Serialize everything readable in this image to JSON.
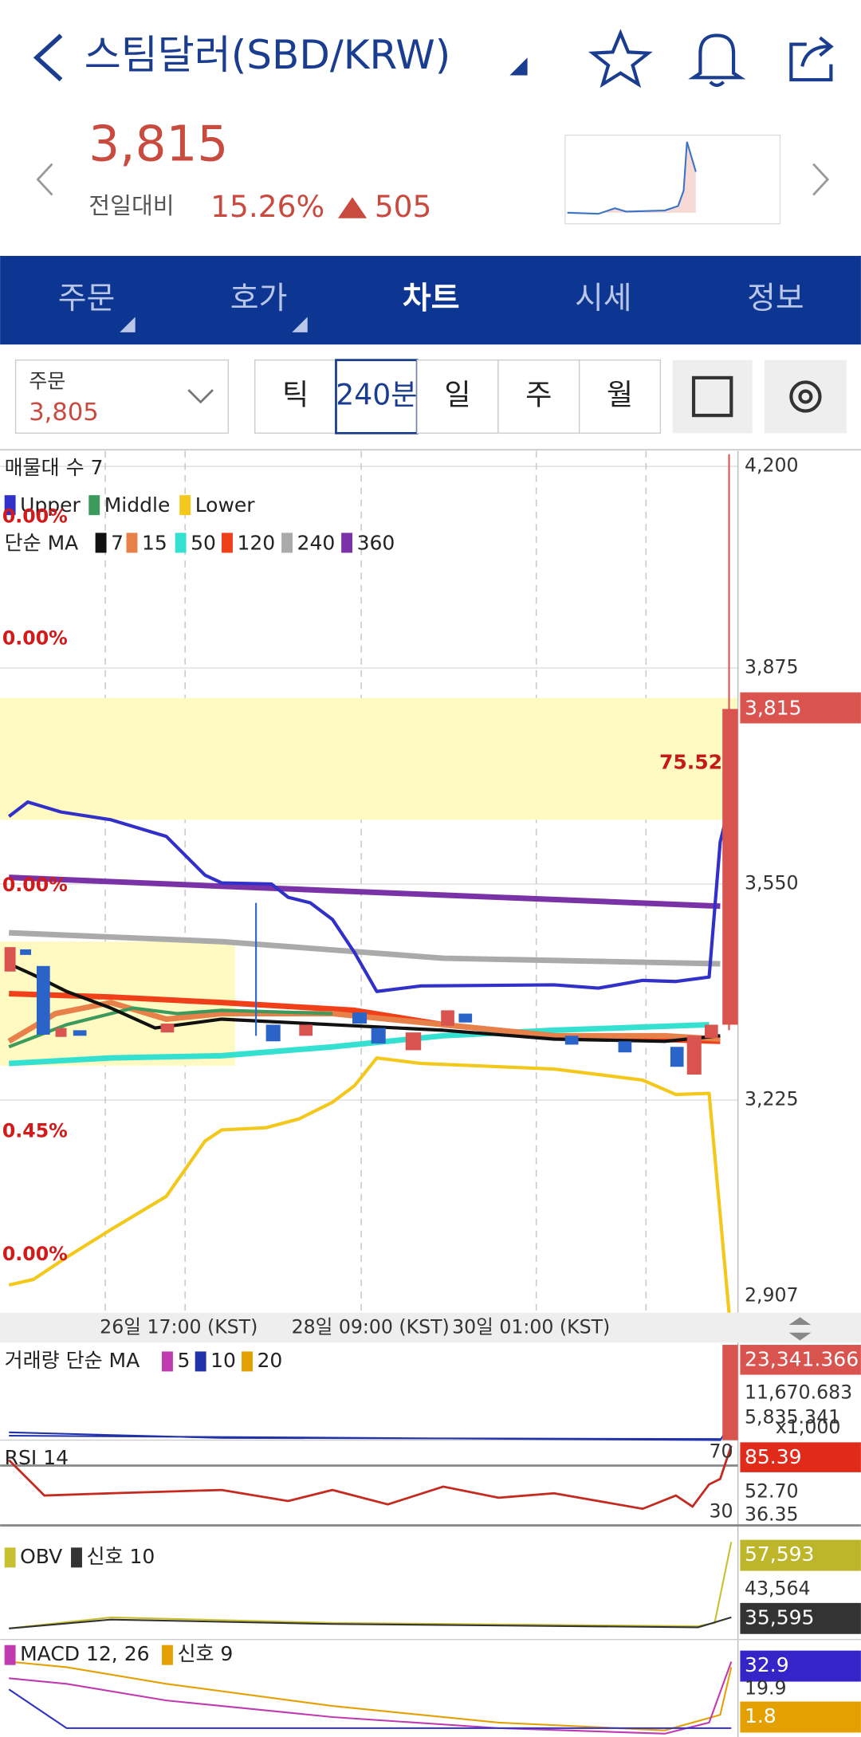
{
  "header": {
    "title": "스팀달러(SBD/KRW)",
    "price": "3,815",
    "change_label": "전일대비",
    "change_pct": "15.26%",
    "change": "505"
  },
  "tabs": [
    "주문",
    "호가",
    "차트",
    "시세",
    "정보"
  ],
  "toolbar": {
    "order_label": "주문",
    "order_value": "3,805",
    "periods": [
      "틱",
      "240분",
      "일",
      "주",
      "월"
    ]
  },
  "chart": {
    "volume_profile": "매물대 수 7",
    "bands": [
      "Upper",
      "Middle",
      "Lower"
    ],
    "ma_label": "단순 MA",
    "ma": [
      "7",
      "15",
      "50",
      "120",
      "240",
      "360"
    ],
    "price_axis": [
      "4,200",
      "3,875",
      "3,550",
      "3,225",
      "2,907"
    ],
    "current_price": "3,815",
    "level_labels": [
      "0.00%",
      "0.00%",
      "0.00%",
      "0.45%",
      "0.00%"
    ],
    "profile_value": "75.52",
    "time_axis": [
      "26일 17:00 (KST)",
      "28일 09:00 (KST)",
      "30일 01:00 (KST)"
    ]
  },
  "volume": {
    "label": "거래량 단순 MA",
    "ma": [
      "5",
      "10",
      "20"
    ],
    "axis": [
      "23,341.366",
      "11,670.683",
      "5,835.341",
      "x1,000"
    ]
  },
  "rsi": {
    "label": "RSI 14",
    "levels": [
      "70",
      "30"
    ],
    "axis": [
      "85.39",
      "52.70",
      "36.35"
    ]
  },
  "obv": {
    "label": "OBV",
    "signal": "신호 10",
    "axis": [
      "57,593",
      "43,564",
      "35,595"
    ]
  },
  "macd": {
    "label": "MACD 12, 26",
    "signal": "신호 9",
    "axis": [
      "32.9",
      "19.9",
      "1.8"
    ]
  }
}
